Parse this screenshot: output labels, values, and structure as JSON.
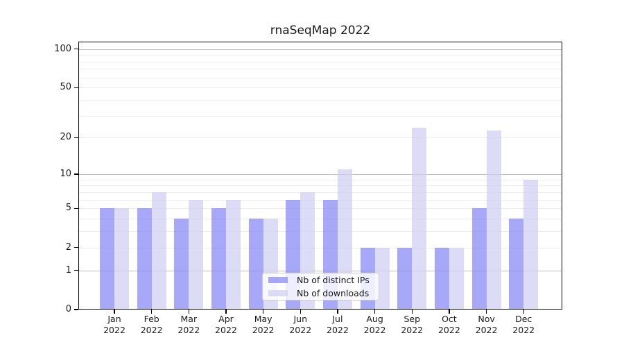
{
  "chart_data": {
    "type": "bar",
    "title": "rnaSeqMap 2022",
    "categories": [
      "Jan 2022",
      "Feb 2022",
      "Mar 2022",
      "Apr 2022",
      "May 2022",
      "Jun 2022",
      "Jul 2022",
      "Aug 2022",
      "Sep 2022",
      "Oct 2022",
      "Nov 2022",
      "Dec 2022"
    ],
    "series": [
      {
        "name": "Nb of distinct IPs",
        "color": "rgba(131,131,245,0.7)",
        "values": [
          5,
          5,
          4,
          5,
          4,
          6,
          6,
          2,
          2,
          2,
          5,
          4
        ]
      },
      {
        "name": "Nb of downloads",
        "color": "rgba(205,205,242,0.7)",
        "values": [
          5,
          7,
          6,
          6,
          4,
          7,
          11,
          2,
          24,
          2,
          23,
          9
        ]
      }
    ],
    "yscale": "log1p",
    "ylim": [
      0,
      114
    ],
    "yticks": [
      0,
      1,
      2,
      5,
      10,
      20,
      50,
      100
    ],
    "ytick_labels": [
      "0",
      "1",
      "2",
      "5",
      "10",
      "20",
      "50",
      "100"
    ],
    "major_gridlines": [
      1,
      10,
      100
    ],
    "minor_gridlines": [
      2,
      3,
      4,
      5,
      6,
      7,
      8,
      9,
      20,
      30,
      40,
      50,
      60,
      70,
      80,
      90
    ],
    "grid": true,
    "legend_position": "lower center",
    "colors": {
      "grid_minor": "#ececec",
      "grid_major": "#bdbdbd",
      "axis": "#000000",
      "legend_border": "#cccccc"
    }
  }
}
